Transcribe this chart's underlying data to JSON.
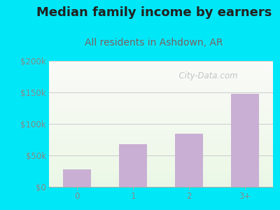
{
  "title": "Median family income by earners",
  "subtitle": "All residents in Ashdown, AR",
  "categories": [
    "0",
    "1",
    "2",
    "3+"
  ],
  "values": [
    28000,
    68000,
    85000,
    148000
  ],
  "bar_color": "#c9afd4",
  "background_outer": "#00e8f8",
  "ylim": [
    0,
    200000
  ],
  "yticks": [
    0,
    50000,
    100000,
    150000,
    200000
  ],
  "ytick_labels": [
    "$0",
    "$50k",
    "$100k",
    "$150k",
    "$200k"
  ],
  "title_fontsize": 13,
  "subtitle_fontsize": 10,
  "tick_fontsize": 8.5,
  "title_color": "#222222",
  "subtitle_color": "#7a6060",
  "watermark": "  City-Data.com",
  "grid_color": "#cccccc",
  "spine_color": "#aaaaaa"
}
